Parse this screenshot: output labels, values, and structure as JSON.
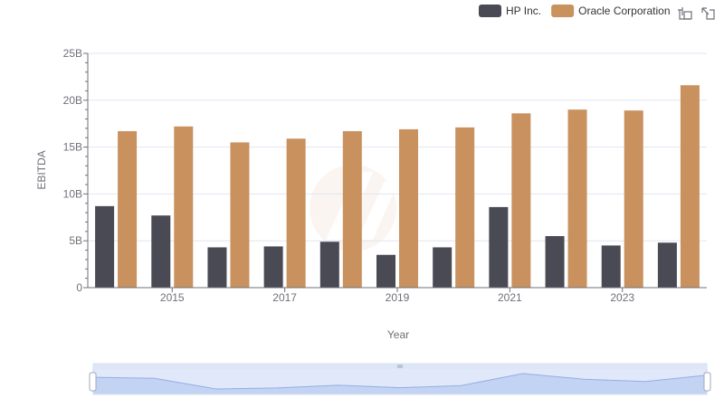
{
  "chart_data": {
    "type": "bar",
    "xlabel": "Year",
    "ylabel": "EBITDA",
    "ylim": [
      0,
      25
    ],
    "y_unit_suffix": "B",
    "y_ticks": [
      "0",
      "5B",
      "10B",
      "15B",
      "20B",
      "25B"
    ],
    "x_tick_labels_shown": [
      "2015",
      "2017",
      "2019",
      "2021",
      "2023"
    ],
    "categories": [
      "2014",
      "2015",
      "2016",
      "2017",
      "2018",
      "2019",
      "2020",
      "2021",
      "2022",
      "2023",
      "2024"
    ],
    "series": [
      {
        "name": "HP Inc.",
        "color": "#4a4a55",
        "values": [
          8.7,
          7.7,
          4.3,
          4.4,
          4.9,
          3.5,
          4.3,
          8.6,
          5.5,
          4.5,
          4.8
        ]
      },
      {
        "name": "Oracle Corporation",
        "color": "#c8915e",
        "values": [
          16.7,
          17.2,
          15.5,
          15.9,
          16.7,
          16.9,
          17.1,
          18.6,
          19.0,
          18.9,
          21.6
        ]
      }
    ],
    "grid": true,
    "legend_position": "top-right",
    "data_zoom": true
  },
  "toolbar": {
    "zoom_icon": "zoom-area-icon",
    "restore_icon": "restore-icon"
  }
}
